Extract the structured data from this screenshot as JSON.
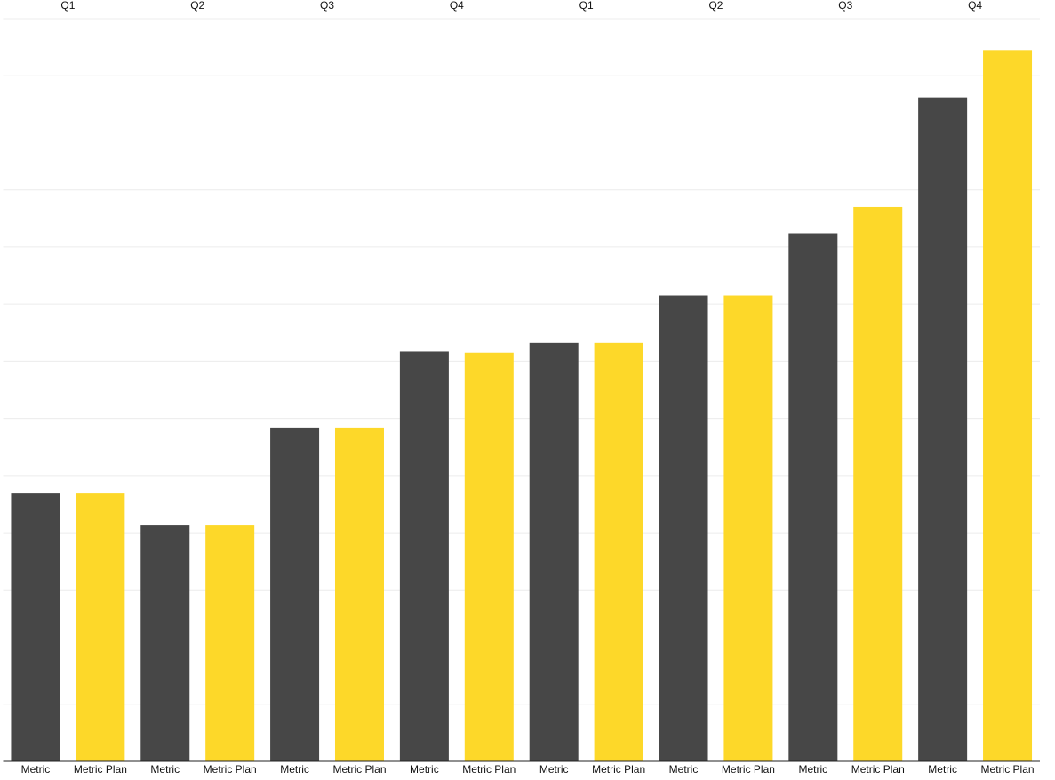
{
  "chart_data": {
    "type": "bar",
    "categories": [
      "Q1",
      "Q2",
      "Q3",
      "Q4",
      "Q1",
      "Q2",
      "Q3",
      "Q4"
    ],
    "series": [
      {
        "name": "Metric",
        "color": "#474747",
        "values": [
          4.7,
          4.14,
          5.84,
          7.17,
          7.32,
          8.15,
          9.24,
          11.62
        ]
      },
      {
        "name": "Metric Plan",
        "color": "#fdd829",
        "values": [
          4.7,
          4.14,
          5.84,
          7.15,
          7.32,
          8.15,
          9.7,
          12.45
        ]
      }
    ],
    "ylim": [
      0,
      13
    ],
    "yticks": [
      0,
      1,
      2,
      3,
      4,
      5,
      6,
      7,
      8,
      9,
      10,
      11,
      12,
      13
    ],
    "grid": true
  }
}
